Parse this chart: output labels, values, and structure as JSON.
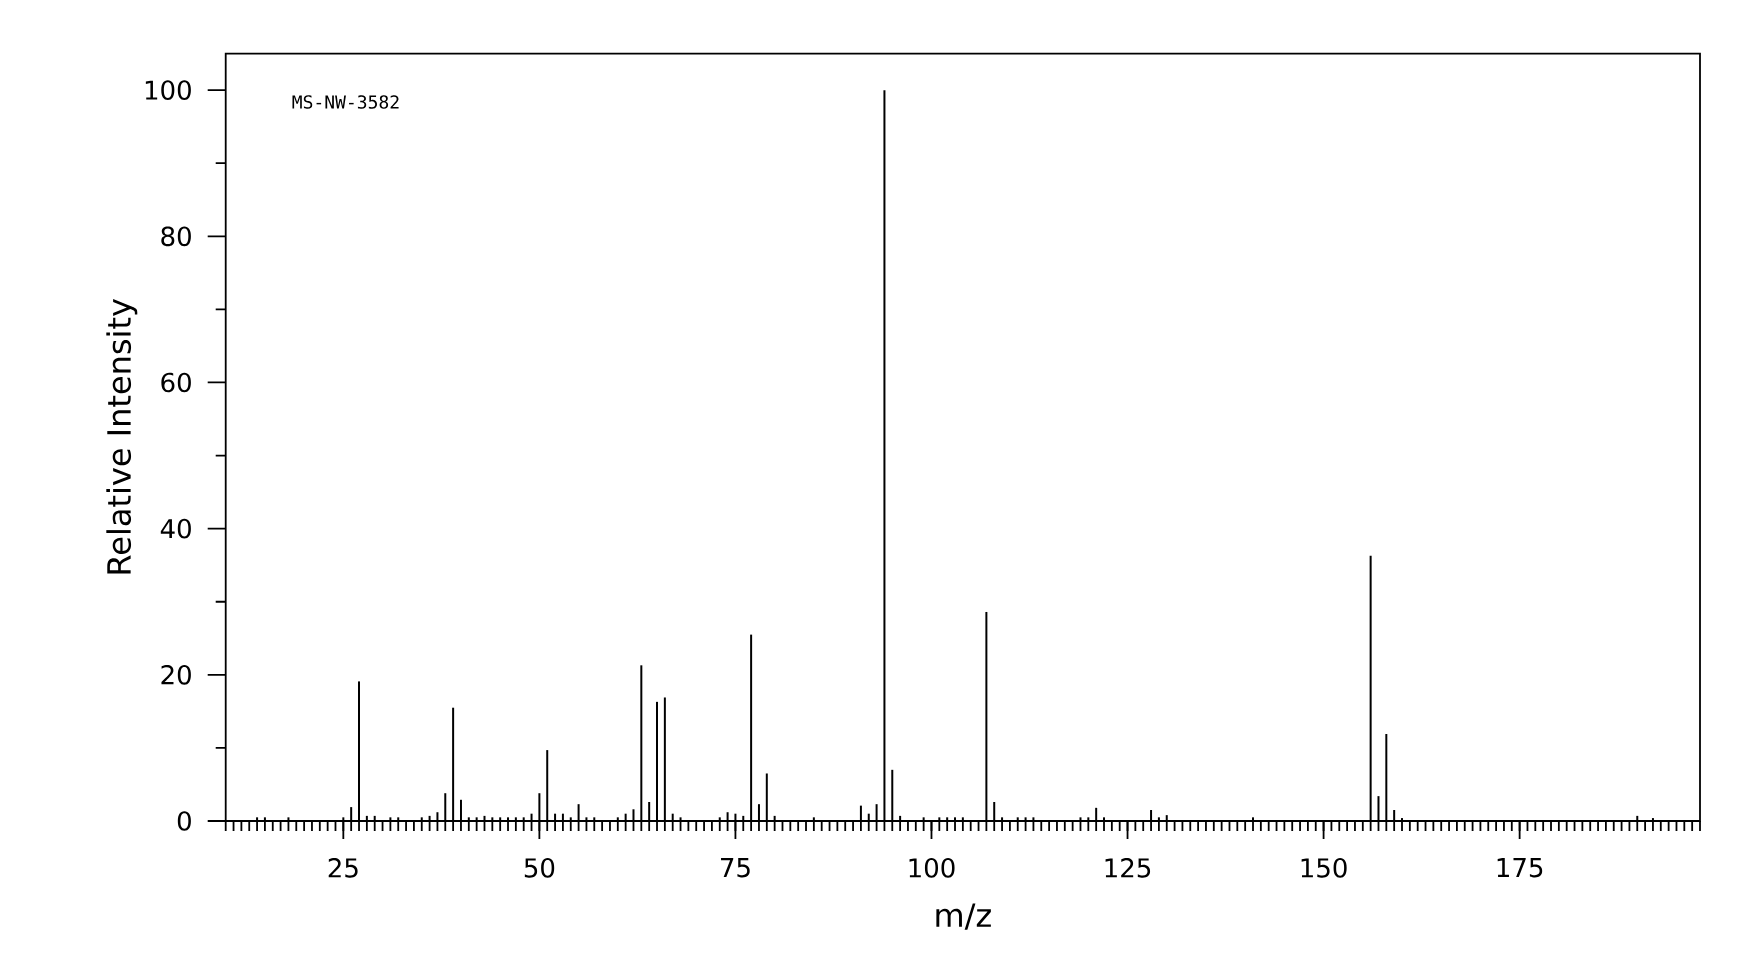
{
  "chart_data": {
    "type": "bar",
    "xlabel": "m/z",
    "ylabel": "Relative Intensity",
    "annotations": [
      "MS-NW-3582"
    ],
    "color": "#000000",
    "x": [
      14,
      15,
      18,
      25,
      26,
      27,
      28,
      29,
      31,
      32,
      35,
      36,
      37,
      38,
      39,
      40,
      41,
      42,
      43,
      44,
      45,
      46,
      47,
      48,
      49,
      50,
      51,
      52,
      53,
      54,
      55,
      56,
      57,
      60,
      61,
      62,
      63,
      64,
      65,
      66,
      67,
      68,
      73,
      74,
      75,
      76,
      77,
      78,
      79,
      80,
      85,
      91,
      92,
      93,
      94,
      95,
      96,
      99,
      101,
      102,
      103,
      104,
      107,
      108,
      109,
      111,
      112,
      113,
      119,
      120,
      121,
      122,
      128,
      129,
      130,
      141,
      156,
      157,
      158,
      159,
      160,
      190,
      192
    ],
    "values": [
      0.5,
      0.5,
      0.5,
      0.5,
      1.9,
      19.1,
      0.7,
      0.7,
      0.5,
      0.5,
      0.5,
      0.7,
      1.2,
      3.8,
      15.5,
      2.9,
      0.5,
      0.5,
      0.7,
      0.5,
      0.5,
      0.5,
      0.5,
      0.5,
      1.0,
      3.8,
      9.7,
      1.0,
      1.0,
      0.5,
      2.3,
      0.5,
      0.5,
      0.5,
      1.0,
      1.6,
      21.3,
      2.6,
      16.3,
      16.9,
      1.0,
      0.5,
      0.5,
      1.2,
      1.0,
      0.7,
      25.5,
      2.3,
      6.5,
      0.7,
      0.5,
      2.1,
      1.0,
      2.3,
      100,
      7.0,
      0.7,
      0.5,
      0.5,
      0.5,
      0.5,
      0.5,
      28.6,
      2.6,
      0.5,
      0.5,
      0.5,
      0.5,
      0.5,
      0.5,
      1.8,
      0.5,
      1.5,
      0.5,
      0.8,
      0.5,
      36.3,
      3.4,
      11.9,
      1.5,
      0.4,
      0.7,
      0.4
    ],
    "xlim": [
      10,
      198
    ],
    "ylim": [
      0,
      105
    ],
    "xticks": [
      25,
      50,
      75,
      100,
      125,
      150,
      175
    ],
    "yticks": [
      0,
      20,
      40,
      60,
      80,
      100
    ]
  }
}
